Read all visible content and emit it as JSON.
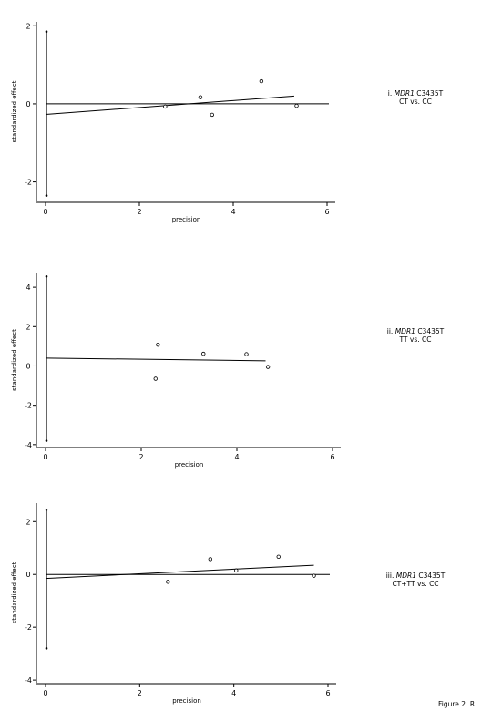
{
  "figure_label": "Figure 2. R",
  "chart_data": [
    {
      "type": "scatter",
      "title_parts": [
        "i. ",
        "MDR1",
        " C3435T"
      ],
      "subtitle": "CT vs. CC",
      "xlabel": "precision",
      "ylabel": "standardized effect",
      "xlim": [
        0,
        6
      ],
      "ylim": [
        -2.5,
        2.1
      ],
      "xticks": [
        0,
        2,
        4,
        6
      ],
      "yticks": [
        -2,
        0,
        2
      ],
      "points": [
        {
          "x": 2.55,
          "y": -0.07
        },
        {
          "x": 3.3,
          "y": 0.17
        },
        {
          "x": 3.55,
          "y": -0.28
        },
        {
          "x": 4.6,
          "y": 0.58
        },
        {
          "x": 5.35,
          "y": -0.05
        }
      ],
      "ci_bar": {
        "x": 0,
        "lower": -2.35,
        "upper": 1.85
      },
      "regression_line": {
        "x": [
          0,
          5.3
        ],
        "y": [
          -0.27,
          0.2
        ]
      },
      "reference_line_y": 0,
      "grid": false,
      "legend": "none"
    },
    {
      "type": "scatter",
      "title_parts": [
        "ii. ",
        "MDR1",
        " C3435T"
      ],
      "subtitle": "TT vs. CC",
      "xlabel": "precision",
      "ylabel": "standardized effect",
      "xlim": [
        0,
        6
      ],
      "ylim": [
        -4.1,
        4.7
      ],
      "xticks": [
        0,
        2,
        4,
        6
      ],
      "yticks": [
        -4,
        -2,
        0,
        2,
        4
      ],
      "points": [
        {
          "x": 2.3,
          "y": -0.65
        },
        {
          "x": 2.35,
          "y": 1.08
        },
        {
          "x": 3.3,
          "y": 0.62
        },
        {
          "x": 4.2,
          "y": 0.6
        },
        {
          "x": 4.65,
          "y": -0.05
        }
      ],
      "ci_bar": {
        "x": 0,
        "lower": -3.8,
        "upper": 4.55
      },
      "regression_line": {
        "x": [
          0,
          4.6
        ],
        "y": [
          0.4,
          0.26
        ]
      },
      "reference_line_y": 0,
      "grid": false,
      "legend": "none"
    },
    {
      "type": "scatter",
      "title_parts": [
        "iii. ",
        "MDR1",
        " C3435T"
      ],
      "subtitle": "CT+TT vs. CC",
      "xlabel": "precision",
      "ylabel": "standardized effect",
      "xlim": [
        0,
        6
      ],
      "ylim": [
        -4.1,
        2.7
      ],
      "xticks": [
        0,
        2,
        4,
        6
      ],
      "yticks": [
        -4,
        -2,
        0,
        2
      ],
      "points": [
        {
          "x": 2.6,
          "y": -0.28
        },
        {
          "x": 3.5,
          "y": 0.58
        },
        {
          "x": 4.05,
          "y": 0.15
        },
        {
          "x": 4.95,
          "y": 0.67
        },
        {
          "x": 5.7,
          "y": -0.05
        }
      ],
      "ci_bar": {
        "x": 0,
        "lower": -2.8,
        "upper": 2.45
      },
      "regression_line": {
        "x": [
          0,
          5.7
        ],
        "y": [
          -0.15,
          0.35
        ]
      },
      "reference_line_y": 0,
      "grid": false,
      "legend": "none"
    }
  ]
}
